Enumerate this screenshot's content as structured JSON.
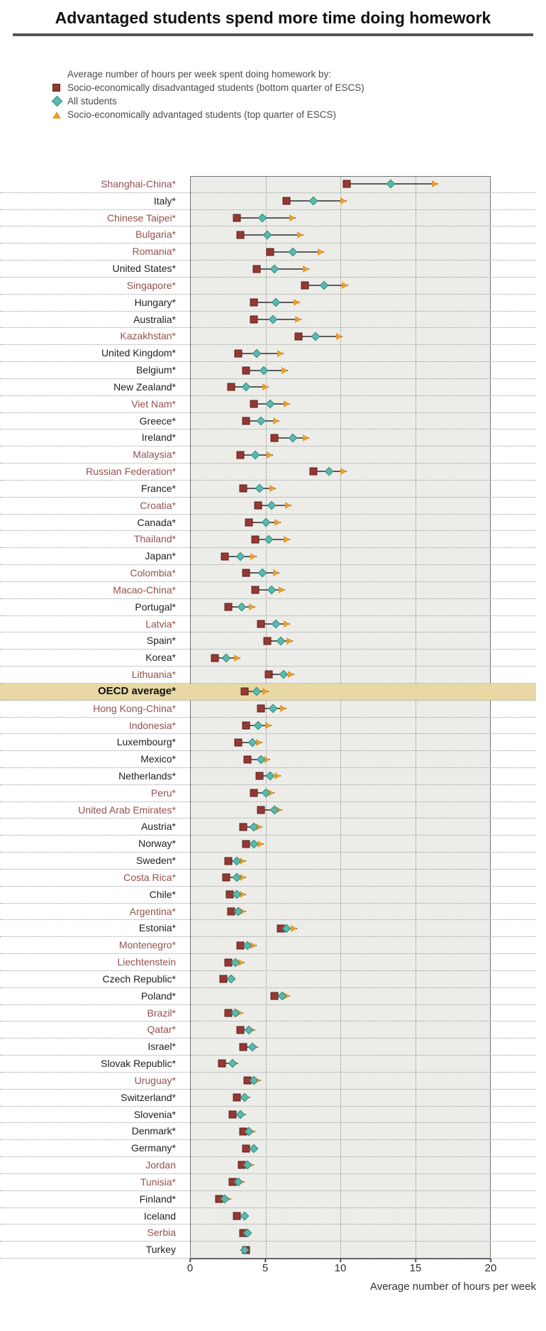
{
  "title": "Advantaged students spend more time doing homework",
  "legend": {
    "heading": "Average number of hours per week spent doing homework by:",
    "items": [
      {
        "marker": "square-icon",
        "color": "#963832",
        "label": "Socio-economically disadvantaged students (bottom quarter of ESCS)"
      },
      {
        "marker": "diamond-icon",
        "color": "#5cb8ac",
        "label": "All students"
      },
      {
        "marker": "triangle-icon",
        "color": "#e89d2c",
        "label": "Socio-economically advantaged students (top quarter of ESCS)"
      }
    ]
  },
  "colors": {
    "disadvantaged": "#963832",
    "all_students": "#5cb8ac",
    "advantaged": "#e89d2c",
    "connector_line": "#5b5c5e",
    "highlight_band": "#e8d8a5",
    "partner_label": "#94514f",
    "plot_background": "#ecede9"
  },
  "chart_data": {
    "type": "scatter",
    "subtype": "dot-plot-with-arrows",
    "title": "Advantaged students spend more time doing homework",
    "xlabel": "Average number of hours per week",
    "xlim": [
      0,
      20
    ],
    "xticks": [
      "0",
      "5",
      "10",
      "15",
      "20"
    ],
    "grid": "dotted vertical gridlines at 5, 10, 15; dotted horizontal row separators",
    "legend_position": "top-left",
    "series_names": [
      "disadvantaged",
      "all",
      "advantaged"
    ],
    "rows": [
      {
        "label": "Shanghai-China*",
        "partner": true,
        "highlight": false,
        "disadvantaged": 10.9,
        "all": 13.8,
        "advantaged": 17.0
      },
      {
        "label": "Italy*",
        "partner": false,
        "highlight": false,
        "disadvantaged": 6.9,
        "all": 8.7,
        "advantaged": 10.9
      },
      {
        "label": "Chinese Taipei*",
        "partner": true,
        "highlight": false,
        "disadvantaged": 3.6,
        "all": 5.3,
        "advantaged": 7.5
      },
      {
        "label": "Bulgaria*",
        "partner": true,
        "highlight": false,
        "disadvantaged": 3.8,
        "all": 5.6,
        "advantaged": 8.0
      },
      {
        "label": "Romania*",
        "partner": true,
        "highlight": false,
        "disadvantaged": 5.8,
        "all": 7.3,
        "advantaged": 9.4
      },
      {
        "label": "United States*",
        "partner": false,
        "highlight": false,
        "disadvantaged": 4.9,
        "all": 6.1,
        "advantaged": 8.4
      },
      {
        "label": "Singapore*",
        "partner": true,
        "highlight": false,
        "disadvantaged": 8.1,
        "all": 9.4,
        "advantaged": 11.0
      },
      {
        "label": "Hungary*",
        "partner": false,
        "highlight": false,
        "disadvantaged": 4.7,
        "all": 6.2,
        "advantaged": 7.8
      },
      {
        "label": "Australia*",
        "partner": false,
        "highlight": false,
        "disadvantaged": 4.7,
        "all": 6.0,
        "advantaged": 7.9
      },
      {
        "label": "Kazakhstan*",
        "partner": true,
        "highlight": false,
        "disadvantaged": 7.7,
        "all": 8.8,
        "advantaged": 10.6
      },
      {
        "label": "United Kingdom*",
        "partner": false,
        "highlight": false,
        "disadvantaged": 3.7,
        "all": 4.9,
        "advantaged": 6.7
      },
      {
        "label": "Belgium*",
        "partner": false,
        "highlight": false,
        "disadvantaged": 4.2,
        "all": 5.4,
        "advantaged": 7.0
      },
      {
        "label": "New Zealand*",
        "partner": false,
        "highlight": false,
        "disadvantaged": 3.2,
        "all": 4.2,
        "advantaged": 5.7
      },
      {
        "label": "Viet Nam*",
        "partner": true,
        "highlight": false,
        "disadvantaged": 4.7,
        "all": 5.8,
        "advantaged": 7.1
      },
      {
        "label": "Greece*",
        "partner": false,
        "highlight": false,
        "disadvantaged": 4.2,
        "all": 5.2,
        "advantaged": 6.4
      },
      {
        "label": "Ireland*",
        "partner": false,
        "highlight": false,
        "disadvantaged": 6.1,
        "all": 7.3,
        "advantaged": 8.4
      },
      {
        "label": "Malaysia*",
        "partner": true,
        "highlight": false,
        "disadvantaged": 3.8,
        "all": 4.8,
        "advantaged": 6.0
      },
      {
        "label": "Russian Federation*",
        "partner": true,
        "highlight": false,
        "disadvantaged": 8.7,
        "all": 9.7,
        "advantaged": 10.9
      },
      {
        "label": "France*",
        "partner": false,
        "highlight": false,
        "disadvantaged": 4.0,
        "all": 5.1,
        "advantaged": 6.2
      },
      {
        "label": "Croatia*",
        "partner": true,
        "highlight": false,
        "disadvantaged": 5.0,
        "all": 5.9,
        "advantaged": 7.2
      },
      {
        "label": "Canada*",
        "partner": false,
        "highlight": false,
        "disadvantaged": 4.4,
        "all": 5.5,
        "advantaged": 6.5
      },
      {
        "label": "Thailand*",
        "partner": true,
        "highlight": false,
        "disadvantaged": 4.8,
        "all": 5.7,
        "advantaged": 7.1
      },
      {
        "label": "Japan*",
        "partner": false,
        "highlight": false,
        "disadvantaged": 2.8,
        "all": 3.8,
        "advantaged": 4.9
      },
      {
        "label": "Colombia*",
        "partner": true,
        "highlight": false,
        "disadvantaged": 4.2,
        "all": 5.3,
        "advantaged": 6.4
      },
      {
        "label": "Macao-China*",
        "partner": true,
        "highlight": false,
        "disadvantaged": 4.8,
        "all": 5.9,
        "advantaged": 6.8
      },
      {
        "label": "Portugal*",
        "partner": false,
        "highlight": false,
        "disadvantaged": 3.0,
        "all": 3.9,
        "advantaged": 4.8
      },
      {
        "label": "Latvia*",
        "partner": true,
        "highlight": false,
        "disadvantaged": 5.2,
        "all": 6.2,
        "advantaged": 7.1
      },
      {
        "label": "Spain*",
        "partner": false,
        "highlight": false,
        "disadvantaged": 5.6,
        "all": 6.5,
        "advantaged": 7.3
      },
      {
        "label": "Korea*",
        "partner": false,
        "highlight": false,
        "disadvantaged": 2.1,
        "all": 2.9,
        "advantaged": 3.8
      },
      {
        "label": "Lithuania*",
        "partner": true,
        "highlight": false,
        "disadvantaged": 5.7,
        "all": 6.7,
        "advantaged": 7.4
      },
      {
        "label": "OECD average*",
        "partner": false,
        "highlight": true,
        "disadvantaged": 4.1,
        "all": 4.9,
        "advantaged": 5.7
      },
      {
        "label": "Hong Kong-China*",
        "partner": true,
        "highlight": false,
        "disadvantaged": 5.2,
        "all": 6.0,
        "advantaged": 6.9
      },
      {
        "label": "Indonesia*",
        "partner": true,
        "highlight": false,
        "disadvantaged": 4.2,
        "all": 5.0,
        "advantaged": 5.9
      },
      {
        "label": "Luxembourg*",
        "partner": false,
        "highlight": false,
        "disadvantaged": 3.7,
        "all": 4.6,
        "advantaged": 5.3
      },
      {
        "label": "Mexico*",
        "partner": false,
        "highlight": false,
        "disadvantaged": 4.3,
        "all": 5.2,
        "advantaged": 5.8
      },
      {
        "label": "Netherlands*",
        "partner": false,
        "highlight": false,
        "disadvantaged": 5.1,
        "all": 5.8,
        "advantaged": 6.5
      },
      {
        "label": "Peru*",
        "partner": true,
        "highlight": false,
        "disadvantaged": 4.7,
        "all": 5.5,
        "advantaged": 6.1
      },
      {
        "label": "United Arab Emirates*",
        "partner": true,
        "highlight": false,
        "disadvantaged": 5.2,
        "all": 6.1,
        "advantaged": 6.6
      },
      {
        "label": "Austria*",
        "partner": false,
        "highlight": false,
        "disadvantaged": 4.0,
        "all": 4.7,
        "advantaged": 5.3
      },
      {
        "label": "Norway*",
        "partner": false,
        "highlight": false,
        "disadvantaged": 4.2,
        "all": 4.7,
        "advantaged": 5.4
      },
      {
        "label": "Sweden*",
        "partner": false,
        "highlight": false,
        "disadvantaged": 3.0,
        "all": 3.6,
        "advantaged": 4.2
      },
      {
        "label": "Costa Rica*",
        "partner": true,
        "highlight": false,
        "disadvantaged": 2.9,
        "all": 3.6,
        "advantaged": 4.2
      },
      {
        "label": "Chile*",
        "partner": false,
        "highlight": false,
        "disadvantaged": 3.1,
        "all": 3.6,
        "advantaged": 4.2
      },
      {
        "label": "Argentina*",
        "partner": true,
        "highlight": false,
        "disadvantaged": 3.2,
        "all": 3.7,
        "advantaged": 4.2
      },
      {
        "label": "Estonia*",
        "partner": false,
        "highlight": false,
        "disadvantaged": 6.5,
        "all": 6.9,
        "advantaged": 7.6
      },
      {
        "label": "Montenegro*",
        "partner": true,
        "highlight": false,
        "disadvantaged": 3.8,
        "all": 4.3,
        "advantaged": 4.9
      },
      {
        "label": "Liechtenstein",
        "partner": true,
        "highlight": false,
        "disadvantaged": 3.0,
        "all": 3.5,
        "advantaged": 4.1
      },
      {
        "label": "Czech Republic*",
        "partner": false,
        "highlight": false,
        "disadvantaged": 2.7,
        "all": 3.2,
        "advantaged": 3.5
      },
      {
        "label": "Poland*",
        "partner": false,
        "highlight": false,
        "disadvantaged": 6.1,
        "all": 6.6,
        "advantaged": 7.1
      },
      {
        "label": "Brazil*",
        "partner": true,
        "highlight": false,
        "disadvantaged": 3.0,
        "all": 3.5,
        "advantaged": 4.0
      },
      {
        "label": "Qatar*",
        "partner": true,
        "highlight": false,
        "disadvantaged": 3.8,
        "all": 4.4,
        "advantaged": 4.8
      },
      {
        "label": "Israel*",
        "partner": false,
        "highlight": false,
        "disadvantaged": 4.0,
        "all": 4.6,
        "advantaged": 5.0
      },
      {
        "label": "Slovak Republic*",
        "partner": false,
        "highlight": false,
        "disadvantaged": 2.6,
        "all": 3.3,
        "advantaged": 3.7
      },
      {
        "label": "Uruguay*",
        "partner": true,
        "highlight": false,
        "disadvantaged": 4.3,
        "all": 4.7,
        "advantaged": 5.2
      },
      {
        "label": "Switzerland*",
        "partner": false,
        "highlight": false,
        "disadvantaged": 3.6,
        "all": 4.1,
        "advantaged": 4.5
      },
      {
        "label": "Slovenia*",
        "partner": false,
        "highlight": false,
        "disadvantaged": 3.3,
        "all": 3.8,
        "advantaged": 4.2
      },
      {
        "label": "Denmark*",
        "partner": false,
        "highlight": false,
        "disadvantaged": 4.0,
        "all": 4.4,
        "advantaged": 4.8
      },
      {
        "label": "Germany*",
        "partner": false,
        "highlight": false,
        "disadvantaged": 4.2,
        "all": 4.7,
        "advantaged": 5.0
      },
      {
        "label": "Jordan",
        "partner": true,
        "highlight": false,
        "disadvantaged": 3.9,
        "all": 4.3,
        "advantaged": 4.7
      },
      {
        "label": "Tunisia*",
        "partner": true,
        "highlight": false,
        "disadvantaged": 3.3,
        "all": 3.7,
        "advantaged": 4.1
      },
      {
        "label": "Finland*",
        "partner": false,
        "highlight": false,
        "disadvantaged": 2.4,
        "all": 2.8,
        "advantaged": 3.2
      },
      {
        "label": "Iceland",
        "partner": false,
        "highlight": false,
        "disadvantaged": 3.6,
        "all": 4.1,
        "advantaged": 3.9
      },
      {
        "label": "Serbia",
        "partner": true,
        "highlight": false,
        "disadvantaged": 4.0,
        "all": 4.3,
        "advantaged": 4.2
      },
      {
        "label": "Turkey",
        "partner": false,
        "highlight": false,
        "disadvantaged": 4.2,
        "all": 4.1,
        "advantaged": 3.8
      }
    ]
  }
}
